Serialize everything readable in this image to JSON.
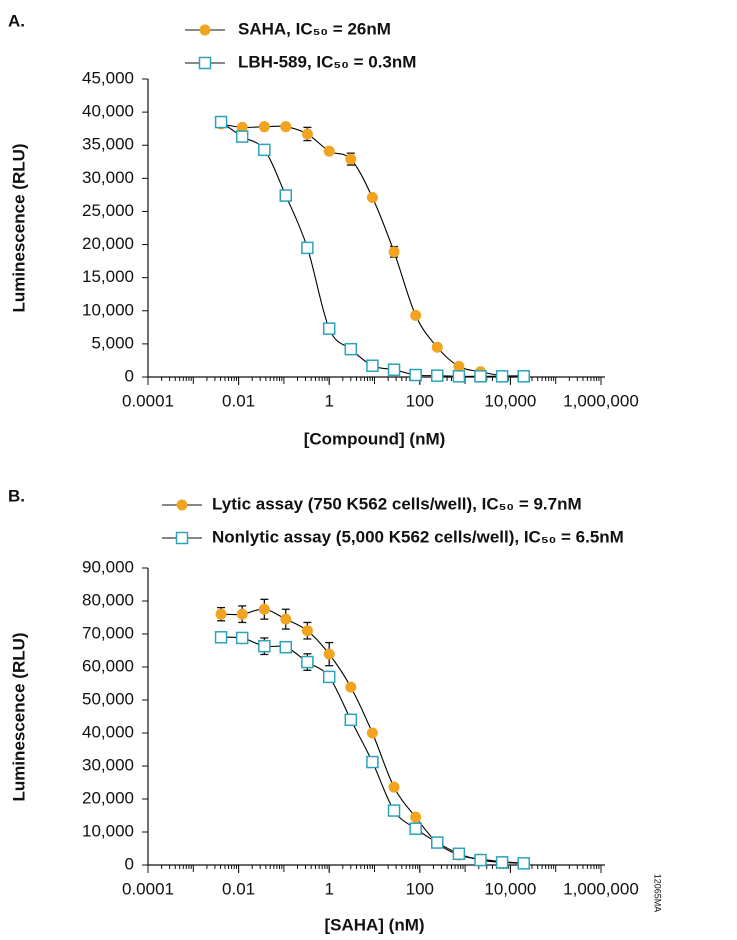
{
  "chart_data": [
    {
      "type": "scatter",
      "panel_label": "A.",
      "xlabel": "[Compound] (nM)",
      "ylabel": "Luminescence (RLU)",
      "xscale": "log",
      "xlim": [
        0.0001,
        1000000
      ],
      "ylim": [
        0,
        45000
      ],
      "xticks": [
        0.0001,
        0.01,
        1,
        100,
        {
          "value": 10000,
          "label": "10,000"
        },
        {
          "value": 1000000,
          "label": "1,000,000"
        }
      ],
      "yticks": [
        0,
        {
          "value": 5000,
          "label": "5,000"
        },
        {
          "value": 10000,
          "label": "10,000"
        },
        {
          "value": 15000,
          "label": "15,000"
        },
        {
          "value": 20000,
          "label": "20,000"
        },
        {
          "value": 25000,
          "label": "25,000"
        },
        {
          "value": 30000,
          "label": "30,000"
        },
        {
          "value": 35000,
          "label": "35,000"
        },
        {
          "value": 40000,
          "label": "40,000"
        },
        {
          "value": 45000,
          "label": "45,000"
        }
      ],
      "legend": "top",
      "trend_line": true,
      "trend_color": "#000000",
      "x": [
        0.0041,
        0.012,
        0.037,
        0.11,
        0.33,
        1,
        3,
        9,
        27,
        81,
        243,
        729,
        2187,
        6561,
        19683
      ],
      "series": [
        {
          "name": "SAHA, IC₅₀ = 26nM",
          "color": "#f2a31f",
          "marker": "circle",
          "values": [
            38200,
            37700,
            37800,
            37800,
            36700,
            34100,
            32900,
            27100,
            18900,
            9300,
            4500,
            1600,
            800,
            200,
            200
          ],
          "errors": [
            null,
            null,
            null,
            null,
            1000,
            null,
            900,
            null,
            800,
            null,
            null,
            null,
            400,
            null,
            null
          ]
        },
        {
          "name": "LBH-589, IC₅₀ = 0.3nM",
          "color": "#2ba3b8",
          "marker": "square",
          "values": [
            38500,
            36300,
            34300,
            27400,
            19500,
            7300,
            4200,
            1700,
            1100,
            300,
            200,
            100,
            100,
            100,
            100
          ],
          "errors": [
            null,
            null,
            null,
            null,
            null,
            null,
            null,
            null,
            null,
            null,
            null,
            null,
            null,
            null,
            null
          ]
        }
      ]
    },
    {
      "type": "scatter",
      "panel_label": "B.",
      "xlabel": "[SAHA] (nM)",
      "ylabel": "Luminescence (RLU)",
      "annotation": "12065MA",
      "xscale": "log",
      "xlim": [
        0.0001,
        1000000
      ],
      "ylim": [
        0,
        90000
      ],
      "xticks": [
        0.0001,
        0.01,
        1,
        100,
        {
          "value": 10000,
          "label": "10,000"
        },
        {
          "value": 1000000,
          "label": "1,000,000"
        }
      ],
      "yticks": [
        0,
        {
          "value": 10000,
          "label": "10,000"
        },
        {
          "value": 20000,
          "label": "20,000"
        },
        {
          "value": 30000,
          "label": "30,000"
        },
        {
          "value": 40000,
          "label": "40,000"
        },
        {
          "value": 50000,
          "label": "50,000"
        },
        {
          "value": 60000,
          "label": "60,000"
        },
        {
          "value": 70000,
          "label": "70,000"
        },
        {
          "value": 80000,
          "label": "80,000"
        },
        {
          "value": 90000,
          "label": "90,000"
        }
      ],
      "legend": "top",
      "trend_line": true,
      "trend_color": "#000000",
      "x": [
        0.0041,
        0.012,
        0.037,
        0.11,
        0.33,
        1,
        3,
        9,
        27,
        81,
        243,
        729,
        2187,
        6561,
        19683
      ],
      "series": [
        {
          "name": "Lytic assay (750 K562 cells/well), IC₅₀ = 9.7nM",
          "color": "#f2a31f",
          "marker": "circle",
          "values": [
            76000,
            76000,
            77500,
            74500,
            71000,
            63900,
            53900,
            40000,
            23600,
            14500,
            6700,
            3000,
            1800,
            1000,
            600
          ],
          "errors": [
            2000,
            2500,
            3000,
            3000,
            2500,
            3500,
            null,
            null,
            null,
            null,
            null,
            null,
            null,
            null,
            null
          ]
        },
        {
          "name": "Nonlytic assay (5,000 K562 cells/well), IC₅₀ = 6.5nM",
          "color": "#2ba3b8",
          "marker": "square",
          "values": [
            69000,
            68800,
            66300,
            66000,
            61500,
            57000,
            44000,
            31200,
            16500,
            11000,
            6800,
            3400,
            1500,
            800,
            500
          ],
          "errors": [
            null,
            1500,
            2500,
            null,
            2500,
            1500,
            null,
            null,
            null,
            null,
            null,
            null,
            null,
            null,
            null
          ]
        }
      ]
    }
  ]
}
